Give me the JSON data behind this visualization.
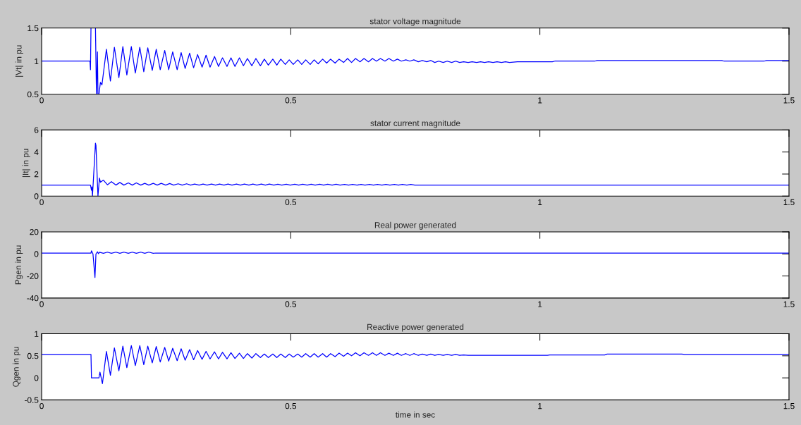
{
  "chart_data": [
    {
      "type": "line",
      "title": "stator voltage magnitude",
      "ylabel": "|Vt| in pu",
      "color": "#0000ff",
      "xlim": [
        0,
        1.5
      ],
      "xticks": [
        0,
        0.5,
        1,
        1.5
      ],
      "ylim": [
        0.5,
        1.5
      ],
      "yticks": [
        0.5,
        1,
        1.5
      ],
      "x": [
        0,
        0.097,
        0.098,
        0.099,
        0.104,
        0.108,
        0.11,
        0.112,
        0.113,
        0.114,
        0.115,
        0.118,
        0.121,
        0.13,
        0.138,
        0.146,
        0.155,
        0.163,
        0.171,
        0.18,
        0.188,
        0.197,
        0.205,
        0.213,
        0.222,
        0.23,
        0.238,
        0.247,
        0.255,
        0.263,
        0.272,
        0.28,
        0.288,
        0.297,
        0.305,
        0.313,
        0.322,
        0.33,
        0.338,
        0.347,
        0.355,
        0.363,
        0.372,
        0.38,
        0.388,
        0.397,
        0.405,
        0.413,
        0.422,
        0.43,
        0.439,
        0.447,
        0.455,
        0.464,
        0.472,
        0.48,
        0.489,
        0.497,
        0.505,
        0.514,
        0.522,
        0.53,
        0.539,
        0.547,
        0.555,
        0.564,
        0.572,
        0.58,
        0.589,
        0.597,
        0.606,
        0.614,
        0.622,
        0.63,
        0.639,
        0.647,
        0.656,
        0.664,
        0.672,
        0.68,
        0.689,
        0.697,
        0.706,
        0.714,
        0.722,
        0.731,
        0.739,
        0.747,
        0.756,
        0.764,
        0.773,
        0.781,
        0.789,
        0.797,
        0.806,
        0.814,
        0.823,
        0.831,
        0.839,
        0.847,
        0.856,
        0.864,
        0.873,
        0.881,
        0.889,
        0.897,
        0.906,
        0.914,
        0.923,
        0.931,
        0.939,
        0.955,
        1.025,
        1.03,
        1.11,
        1.115,
        1.365,
        1.37,
        1.45,
        1.455,
        1.5
      ],
      "values": [
        1,
        1,
        0.87,
        1.5,
        null,
        1.5,
        0.5,
        1.14,
        0.5,
        null,
        0.5,
        0.68,
        0.64,
        1.18,
        0.7,
        1.21,
        0.75,
        1.22,
        0.79,
        1.22,
        0.82,
        1.21,
        0.84,
        1.2,
        0.86,
        1.18,
        0.87,
        1.16,
        0.87,
        1.14,
        0.87,
        1.13,
        0.89,
        1.12,
        0.9,
        1.1,
        0.91,
        1.09,
        0.91,
        1.07,
        0.92,
        1.05,
        0.92,
        1.05,
        0.92,
        1.05,
        0.93,
        1.04,
        0.93,
        1.04,
        0.93,
        1.03,
        0.94,
        1.03,
        0.94,
        1.03,
        0.95,
        1.02,
        0.95,
        1.02,
        0.95,
        1.02,
        0.95,
        1.02,
        0.96,
        1.03,
        0.97,
        1.03,
        0.97,
        1.03,
        0.98,
        1.04,
        0.98,
        1.04,
        0.99,
        1.04,
        0.99,
        1.04,
        1.0,
        1.04,
        1.0,
        1.04,
        1.0,
        1.03,
        1.0,
        1.02,
        1.0,
        1.02,
        0.99,
        1.01,
        0.99,
        1.01,
        0.98,
        1.0,
        0.98,
        1.0,
        0.98,
        1.0,
        0.98,
        0.99,
        0.98,
        0.99,
        0.98,
        0.99,
        0.98,
        0.99,
        0.98,
        0.99,
        0.98,
        0.99,
        0.98,
        0.99,
        0.99,
        1.0,
        1.0,
        1.01,
        1.01,
        1.0,
        1.0,
        1.01,
        1.01
      ]
    },
    {
      "type": "line",
      "title": "stator current magnitude",
      "ylabel": "|It| in pu",
      "color": "#0000ff",
      "xlim": [
        0,
        1.5
      ],
      "xticks": [
        0,
        0.5,
        1,
        1.5
      ],
      "ylim": [
        0,
        6
      ],
      "yticks": [
        0,
        2,
        4,
        6
      ],
      "x": [
        0,
        0.098,
        0.1,
        0.101,
        0.102,
        0.108,
        0.109,
        0.113,
        0.116,
        0.118,
        0.124,
        0.132,
        0.14,
        0.149,
        0.157,
        0.165,
        0.174,
        0.182,
        0.19,
        0.199,
        0.207,
        0.215,
        0.224,
        0.232,
        0.24,
        0.249,
        0.257,
        0.265,
        0.274,
        0.282,
        0.291,
        0.299,
        0.307,
        0.316,
        0.324,
        0.332,
        0.341,
        0.349,
        0.357,
        0.366,
        0.374,
        0.382,
        0.391,
        0.399,
        0.407,
        0.416,
        0.424,
        0.432,
        0.441,
        0.449,
        0.457,
        0.466,
        0.474,
        0.482,
        0.491,
        0.499,
        0.508,
        0.516,
        0.524,
        0.533,
        0.541,
        0.549,
        0.558,
        0.566,
        0.574,
        0.583,
        0.591,
        0.599,
        0.608,
        0.616,
        0.624,
        0.633,
        0.641,
        0.649,
        0.658,
        0.666,
        0.674,
        0.683,
        0.691,
        0.699,
        0.708,
        0.716,
        0.724,
        0.733,
        0.741,
        0.749,
        1.5
      ],
      "values": [
        1,
        1,
        0.53,
        0.84,
        0,
        4.8,
        4.6,
        0,
        1.64,
        1.26,
        1.45,
        1.03,
        1.31,
        1.0,
        1.24,
        1.0,
        1.2,
        1.0,
        1.2,
        1.0,
        1.16,
        1.0,
        1.16,
        1.0,
        1.16,
        1.0,
        1.14,
        1.0,
        1.12,
        1.0,
        1.12,
        1.0,
        1.1,
        1.0,
        1.1,
        1.0,
        1.1,
        1.0,
        1.1,
        1.0,
        1.1,
        1.0,
        1.1,
        1.0,
        1.1,
        1.0,
        1.1,
        1.0,
        1.1,
        1.0,
        1.1,
        1.0,
        1.08,
        1.0,
        1.08,
        1.0,
        1.08,
        1.0,
        1.08,
        1.0,
        1.08,
        1.0,
        1.08,
        1.0,
        1.08,
        1.0,
        1.08,
        1.0,
        1.06,
        1.0,
        1.06,
        1.0,
        1.06,
        1.0,
        1.06,
        1.0,
        1.06,
        1.0,
        1.06,
        1.0,
        1.06,
        1.0,
        1.06,
        1.0,
        1.06,
        1.0,
        1.0
      ]
    },
    {
      "type": "line",
      "title": "Real power generated",
      "ylabel": "Pgen in pu",
      "color": "#0000ff",
      "xlim": [
        0,
        1.5
      ],
      "xticks": [
        0,
        0.5,
        1,
        1.5
      ],
      "ylim": [
        -40,
        20
      ],
      "yticks": [
        -40,
        -20,
        0,
        20
      ],
      "x": [
        0,
        0.099,
        0.1,
        0.103,
        0.107,
        0.109,
        0.112,
        0.114,
        0.116,
        0.124,
        0.132,
        0.14,
        0.149,
        0.157,
        0.165,
        0.174,
        0.182,
        0.19,
        0.199,
        0.207,
        0.215,
        0.224,
        0.229,
        1.5
      ],
      "values": [
        0.8,
        0.8,
        2.8,
        0,
        -21.4,
        0,
        1.9,
        0.2,
        1.5,
        0.6,
        1.6,
        0.6,
        1.6,
        0.6,
        1.6,
        0.6,
        1.6,
        0.6,
        1.6,
        0.6,
        1.6,
        0.6,
        0.8,
        0.8
      ]
    },
    {
      "type": "line",
      "title": "Reactive power generated",
      "ylabel": "Qgen in pu",
      "xlabel": "time in sec",
      "color": "#0000ff",
      "xlim": [
        0,
        1.5
      ],
      "xticks": [
        0,
        0.5,
        1,
        1.5
      ],
      "ylim": [
        -0.5,
        1
      ],
      "yticks": [
        -0.5,
        0,
        0.5,
        1
      ],
      "x": [
        0,
        0.099,
        0.1,
        0.115,
        0.117,
        0.122,
        0.13,
        0.138,
        0.146,
        0.155,
        0.163,
        0.171,
        0.18,
        0.188,
        0.197,
        0.205,
        0.213,
        0.222,
        0.23,
        0.238,
        0.247,
        0.255,
        0.263,
        0.272,
        0.28,
        0.288,
        0.297,
        0.305,
        0.313,
        0.322,
        0.33,
        0.338,
        0.347,
        0.355,
        0.363,
        0.372,
        0.38,
        0.388,
        0.397,
        0.405,
        0.413,
        0.422,
        0.43,
        0.439,
        0.447,
        0.455,
        0.464,
        0.472,
        0.48,
        0.489,
        0.497,
        0.505,
        0.514,
        0.522,
        0.53,
        0.539,
        0.547,
        0.555,
        0.564,
        0.572,
        0.58,
        0.589,
        0.597,
        0.606,
        0.614,
        0.622,
        0.63,
        0.639,
        0.647,
        0.656,
        0.664,
        0.672,
        0.68,
        0.689,
        0.697,
        0.706,
        0.714,
        0.722,
        0.731,
        0.739,
        0.747,
        0.756,
        0.764,
        0.773,
        0.781,
        0.789,
        0.797,
        0.806,
        0.814,
        0.823,
        0.831,
        0.839,
        0.847,
        0.856,
        0.88,
        1.015,
        1.02,
        1.13,
        1.135,
        1.285,
        1.29,
        1.5
      ],
      "values": [
        0.53,
        0.53,
        0,
        0,
        0.13,
        -0.13,
        0.6,
        0.06,
        0.68,
        0.16,
        0.72,
        0.23,
        0.73,
        0.28,
        0.73,
        0.3,
        0.72,
        0.34,
        0.71,
        0.36,
        0.69,
        0.38,
        0.67,
        0.39,
        0.66,
        0.4,
        0.64,
        0.41,
        0.62,
        0.42,
        0.6,
        0.43,
        0.59,
        0.43,
        0.58,
        0.43,
        0.57,
        0.44,
        0.56,
        0.44,
        0.55,
        0.45,
        0.55,
        0.46,
        0.54,
        0.46,
        0.54,
        0.46,
        0.54,
        0.46,
        0.54,
        0.47,
        0.54,
        0.47,
        0.55,
        0.47,
        0.55,
        0.47,
        0.55,
        0.47,
        0.55,
        0.48,
        0.56,
        0.49,
        0.56,
        0.5,
        0.57,
        0.5,
        0.57,
        0.51,
        0.57,
        0.51,
        0.57,
        0.51,
        0.56,
        0.51,
        0.56,
        0.51,
        0.55,
        0.51,
        0.55,
        0.51,
        0.54,
        0.51,
        0.54,
        0.51,
        0.53,
        0.51,
        0.53,
        0.51,
        0.53,
        0.51,
        0.52,
        0.51,
        0.51,
        0.51,
        0.52,
        0.52,
        0.54,
        0.54,
        0.53,
        0.53
      ]
    }
  ]
}
